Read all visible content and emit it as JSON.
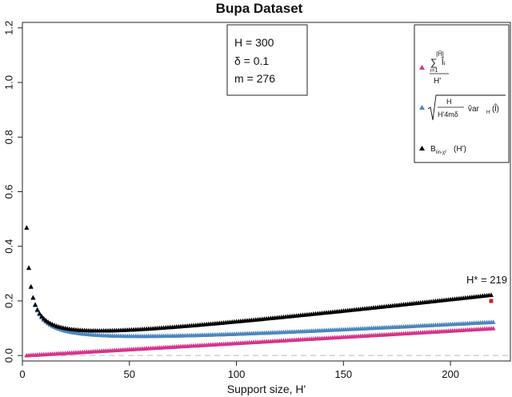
{
  "chart_data": {
    "type": "scatter",
    "title": "Bupa Dataset",
    "xlabel": "Support size, H'",
    "ylabel": "",
    "xlim": [
      0,
      228
    ],
    "ylim": [
      -0.02,
      1.22
    ],
    "x_ticks": [
      0,
      50,
      100,
      150,
      200
    ],
    "y_ticks": [
      0.0,
      0.2,
      0.4,
      0.6,
      0.8,
      1.0,
      1.2
    ],
    "grid": false,
    "reference_line": {
      "y": 0.0,
      "style": "dashed",
      "color": "#bbbbbb"
    },
    "params_box": {
      "lines": [
        "H = 300",
        "δ = 0.1",
        "m = 276"
      ]
    },
    "legend_position": "top-right",
    "series": [
      {
        "id": "empirical",
        "color": "#d6338a",
        "marker": "triangle",
        "legend": {
          "top": "|Ĥ|",
          "sum": "∑",
          "sub": "i=1",
          "summand": "l̂ᵢ",
          "den": "H'"
        },
        "x_range": [
          2,
          220
        ],
        "formula": "y ≈ 0.1 · x / 220"
      },
      {
        "id": "penalty",
        "color": "#4a86c0",
        "marker": "triangle",
        "legend": {
          "num": "H",
          "den": "H'4mδ",
          "term": "v̂ar",
          "sub": "H'",
          "arg": "(l̂)"
        },
        "x_range": [
          2,
          220
        ],
        "formula": "y ≈ 0.24·sqrt(2/x)·(1+1.9/x) + 0.1·(x−2)/218"
      },
      {
        "id": "bound",
        "color": "#000000",
        "marker": "triangle",
        "legend": {
          "text": "B",
          "sub": "lin-χ²",
          "arg": "(H')"
        },
        "x_range": [
          2,
          219
        ],
        "formula": "y = empirical + penalty"
      }
    ],
    "annotation": {
      "text": "H* = 219",
      "x": 219,
      "y": 0.2,
      "marker_color": "#cc2222"
    }
  }
}
